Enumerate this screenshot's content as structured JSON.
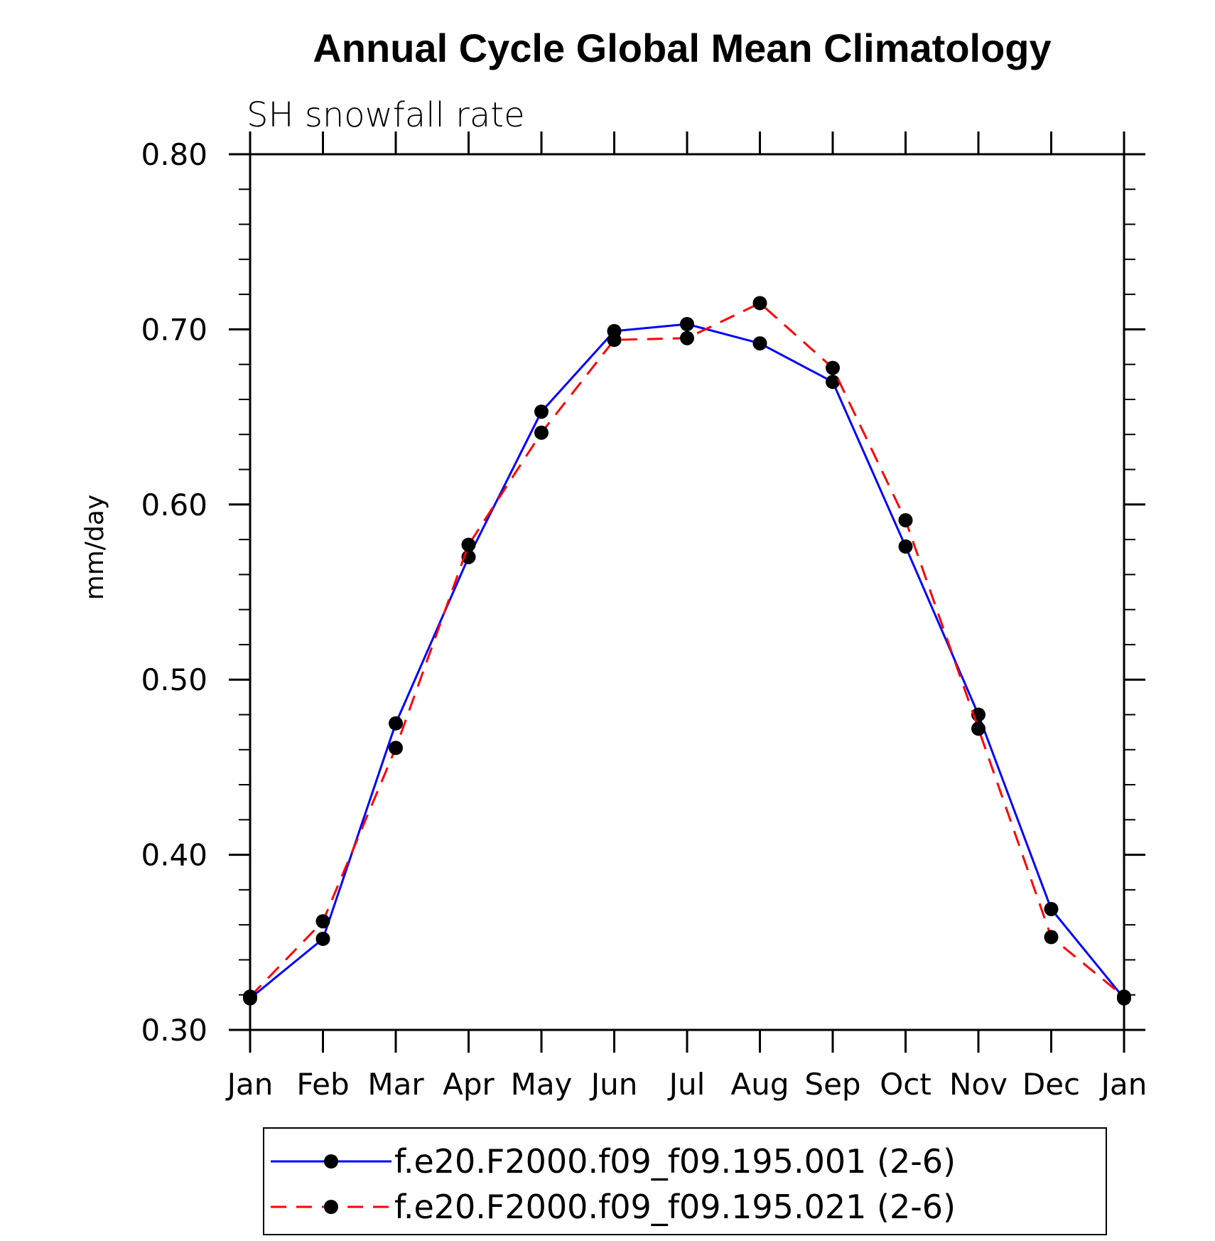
{
  "chart_data": {
    "type": "line",
    "title": "Annual Cycle Global Mean Climatology",
    "subtitle": "SH snowfall rate",
    "xlabel": "",
    "ylabel": "mm/day",
    "ylim": [
      0.3,
      0.8
    ],
    "yticks": [
      "0.30",
      "0.40",
      "0.50",
      "0.60",
      "0.70",
      "0.80"
    ],
    "categories": [
      "Jan",
      "Feb",
      "Mar",
      "Apr",
      "May",
      "Jun",
      "Jul",
      "Aug",
      "Sep",
      "Oct",
      "Nov",
      "Dec",
      "Jan"
    ],
    "grid": false,
    "legend_position": "bottom",
    "series": [
      {
        "name": "f.e20.F2000.f09_f09.195.001 (2-6)",
        "color": "#0000ff",
        "dash": "solid",
        "marker": "filled-circle",
        "values": [
          0.318,
          0.352,
          0.475,
          0.57,
          0.653,
          0.699,
          0.703,
          0.692,
          0.67,
          0.576,
          0.48,
          0.369,
          0.318
        ]
      },
      {
        "name": "f.e20.F2000.f09_f09.195.021 (2-6)",
        "color": "#ff0000",
        "dash": "dashed",
        "marker": "filled-circle",
        "values": [
          0.319,
          0.362,
          0.461,
          0.577,
          0.641,
          0.694,
          0.695,
          0.715,
          0.678,
          0.591,
          0.472,
          0.353,
          0.319
        ]
      }
    ]
  }
}
